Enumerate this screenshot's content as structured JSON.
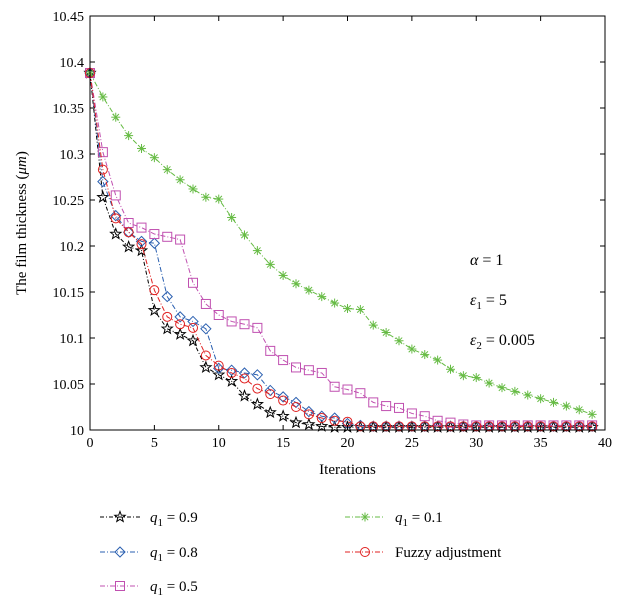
{
  "chart_data": {
    "type": "line",
    "xlabel": "Iterations",
    "ylabel_main": "The film thickness (",
    "ylabel_unit": "μm",
    "ylabel_end": ")",
    "xlim": [
      0,
      40
    ],
    "ylim": [
      10,
      10.45
    ],
    "xticks": [
      "0",
      "5",
      "10",
      "15",
      "20",
      "25",
      "30",
      "35",
      "40"
    ],
    "yticks": [
      "10",
      "10.05",
      "10.1",
      "10.15",
      "10.2",
      "10.25",
      "10.3",
      "10.35",
      "10.4",
      "10.45"
    ],
    "annotations": [
      {
        "sym": "α",
        "sub": "",
        "rest": " = 1"
      },
      {
        "sym": "ε",
        "sub": "1",
        "rest": " = 5"
      },
      {
        "sym": "ε",
        "sub": "2",
        "rest": " = 0.005"
      }
    ],
    "series": [
      {
        "name": "q1 = 0.9",
        "legend_var": "q",
        "legend_sub": "1",
        "legend_rest": " = 0.9",
        "color": "#000000",
        "marker": "star",
        "x": [
          0,
          1,
          2,
          3,
          4,
          5,
          6,
          7,
          8,
          9,
          10,
          11,
          12,
          13,
          14,
          15,
          16,
          17,
          18,
          19,
          20,
          21,
          22,
          23,
          24,
          25,
          26,
          27,
          28,
          29,
          30,
          31,
          32,
          33,
          34,
          35,
          36,
          37,
          38,
          39
        ],
        "y": [
          10.388,
          10.253,
          10.213,
          10.199,
          10.195,
          10.13,
          10.11,
          10.104,
          10.097,
          10.068,
          10.06,
          10.053,
          10.037,
          10.028,
          10.019,
          10.015,
          10.008,
          10.006,
          10.004,
          10.003,
          10.003,
          10.003,
          10.003,
          10.003,
          10.003,
          10.003,
          10.003,
          10.003,
          10.003,
          10.003,
          10.003,
          10.003,
          10.003,
          10.003,
          10.003,
          10.003,
          10.003,
          10.003,
          10.003,
          10.003
        ]
      },
      {
        "name": "q1 = 0.8",
        "legend_var": "q",
        "legend_sub": "1",
        "legend_rest": " = 0.8",
        "color": "#2a5fb0",
        "marker": "diamond",
        "x": [
          0,
          1,
          2,
          3,
          4,
          5,
          6,
          7,
          8,
          9,
          10,
          11,
          12,
          13,
          14,
          15,
          16,
          17,
          18,
          19,
          20,
          21,
          22,
          23,
          24,
          25,
          26,
          27,
          28,
          29,
          30,
          31,
          32,
          33,
          34,
          35,
          36,
          37,
          38,
          39
        ],
        "y": [
          10.388,
          10.27,
          10.233,
          10.215,
          10.205,
          10.203,
          10.145,
          10.123,
          10.118,
          10.11,
          10.067,
          10.065,
          10.062,
          10.06,
          10.043,
          10.036,
          10.03,
          10.02,
          10.015,
          10.013,
          10.007,
          10.005,
          10.004,
          10.004,
          10.004,
          10.004,
          10.004,
          10.004,
          10.004,
          10.004,
          10.004,
          10.004,
          10.004,
          10.004,
          10.004,
          10.004,
          10.004,
          10.004,
          10.004,
          10.004
        ]
      },
      {
        "name": "q1 = 0.5",
        "legend_var": "q",
        "legend_sub": "1",
        "legend_rest": " = 0.5",
        "color": "#c050b0",
        "marker": "square",
        "x": [
          0,
          1,
          2,
          3,
          4,
          5,
          6,
          7,
          8,
          9,
          10,
          11,
          12,
          13,
          14,
          15,
          16,
          17,
          18,
          19,
          20,
          21,
          22,
          23,
          24,
          25,
          26,
          27,
          28,
          29,
          30,
          31,
          32,
          33,
          34,
          35,
          36,
          37,
          38,
          39
        ],
        "y": [
          10.388,
          10.302,
          10.255,
          10.225,
          10.22,
          10.213,
          10.21,
          10.207,
          10.16,
          10.137,
          10.125,
          10.118,
          10.115,
          10.111,
          10.086,
          10.076,
          10.068,
          10.065,
          10.062,
          10.047,
          10.044,
          10.04,
          10.03,
          10.026,
          10.024,
          10.018,
          10.015,
          10.01,
          10.008,
          10.006,
          10.005,
          10.005,
          10.005,
          10.005,
          10.005,
          10.005,
          10.005,
          10.005,
          10.005,
          10.005
        ]
      },
      {
        "name": "q1 = 0.1",
        "legend_var": "q",
        "legend_sub": "1",
        "legend_rest": " = 0.1",
        "color": "#66bb44",
        "marker": "asterisk",
        "x": [
          0,
          1,
          2,
          3,
          4,
          5,
          6,
          7,
          8,
          9,
          10,
          11,
          12,
          13,
          14,
          15,
          16,
          17,
          18,
          19,
          20,
          21,
          22,
          23,
          24,
          25,
          26,
          27,
          28,
          29,
          30,
          31,
          32,
          33,
          34,
          35,
          36,
          37,
          38,
          39
        ],
        "y": [
          10.388,
          10.362,
          10.34,
          10.32,
          10.306,
          10.296,
          10.283,
          10.272,
          10.262,
          10.253,
          10.251,
          10.231,
          10.212,
          10.195,
          10.18,
          10.168,
          10.159,
          10.152,
          10.145,
          10.138,
          10.132,
          10.131,
          10.114,
          10.106,
          10.097,
          10.088,
          10.082,
          10.076,
          10.066,
          10.059,
          10.057,
          10.051,
          10.046,
          10.042,
          10.038,
          10.034,
          10.03,
          10.026,
          10.022,
          10.017
        ]
      },
      {
        "name": "Fuzzy adjustment",
        "legend_var": "",
        "legend_sub": "",
        "legend_rest": "Fuzzy adjustment",
        "color": "#e02020",
        "marker": "circle",
        "x": [
          0,
          1,
          2,
          3,
          4,
          5,
          6,
          7,
          8,
          9,
          10,
          11,
          12,
          13,
          14,
          15,
          16,
          17,
          18,
          19,
          20,
          21,
          22,
          23,
          24,
          25,
          26,
          27,
          28,
          29,
          30,
          31,
          32,
          33,
          34,
          35,
          36,
          37,
          38,
          39
        ],
        "y": [
          10.388,
          10.283,
          10.23,
          10.215,
          10.202,
          10.152,
          10.123,
          10.115,
          10.111,
          10.081,
          10.07,
          10.062,
          10.056,
          10.045,
          10.039,
          10.032,
          10.025,
          10.017,
          10.013,
          10.01,
          10.009,
          10.004,
          10.004,
          10.004,
          10.004,
          10.004,
          10.004,
          10.004,
          10.004,
          10.004,
          10.004,
          10.004,
          10.004,
          10.004,
          10.004,
          10.004,
          10.004,
          10.004,
          10.004,
          10.004
        ]
      }
    ]
  }
}
